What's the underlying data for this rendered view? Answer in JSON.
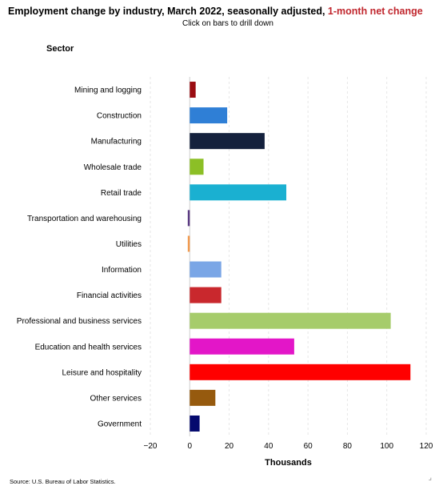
{
  "header": {
    "title_main": "Employment change by industry, March 2022, seasonally adjusted, ",
    "title_highlight": "1-month net change",
    "subtitle": "Click on bars to drill down",
    "category_axis_title": "Sector"
  },
  "footer": {
    "source": "Source: U.S. Bureau of Labor Statistics."
  },
  "chart_data": {
    "type": "bar",
    "orientation": "horizontal",
    "categories": [
      "Mining and logging",
      "Construction",
      "Manufacturing",
      "Wholesale trade",
      "Retail trade",
      "Transportation and warehousing",
      "Utilities",
      "Information",
      "Financial activities",
      "Professional and business services",
      "Education and health services",
      "Leisure and hospitality",
      "Other services",
      "Government"
    ],
    "values": [
      3,
      19,
      38,
      7,
      49,
      -1,
      -1,
      16,
      16,
      102,
      53,
      112,
      13,
      5
    ],
    "colors": [
      "#9b0d12",
      "#2f7fd6",
      "#14213d",
      "#8cbf26",
      "#1ab0d1",
      "#5a3a82",
      "#f29a4e",
      "#7aa6e6",
      "#c9282d",
      "#a6cc6b",
      "#e316c8",
      "#ff0000",
      "#965a0e",
      "#050a6e"
    ],
    "xlabel": "Thousands",
    "xlim": [
      -20,
      120
    ],
    "xticks": [
      -20,
      0,
      20,
      40,
      60,
      80,
      100,
      120
    ],
    "grid": true
  }
}
